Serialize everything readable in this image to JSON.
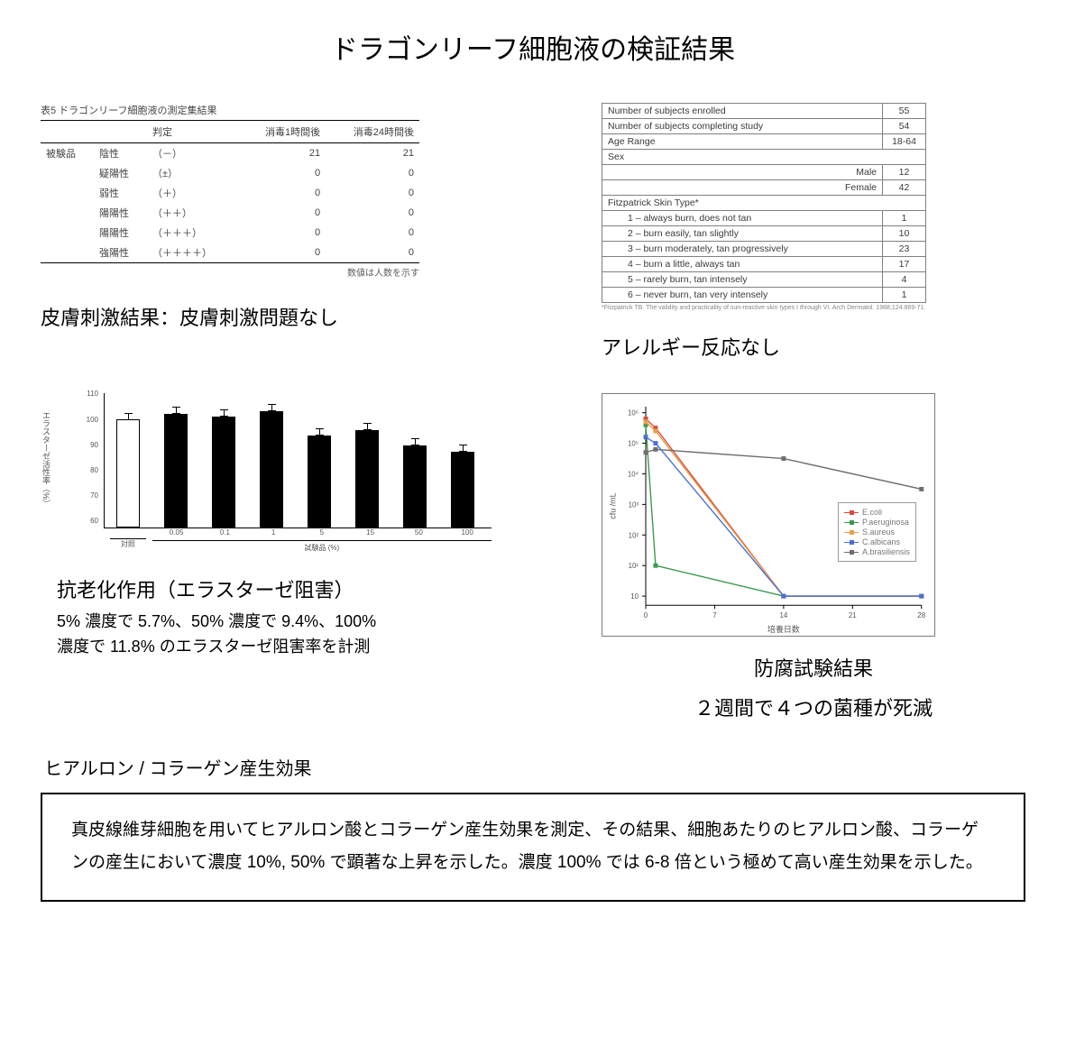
{
  "title": "ドラゴンリーフ細胞液の検証結果",
  "irritation": {
    "caption": "表5 ドラゴンリーフ細胞液の測定集結果",
    "headers": [
      "",
      "",
      "判定",
      "消毒1時間後",
      "消毒24時間後"
    ],
    "rows": [
      [
        "被験品",
        "陰性",
        "（－）",
        "21",
        "21"
      ],
      [
        "",
        "疑陽性",
        "（±）",
        "0",
        "0"
      ],
      [
        "",
        "弱性",
        "（＋）",
        "0",
        "0"
      ],
      [
        "",
        "陽陽性",
        "（＋＋）",
        "0",
        "0"
      ],
      [
        "",
        "陽陽性",
        "（＋＋＋）",
        "0",
        "0"
      ],
      [
        "",
        "強陽性",
        "（＋＋＋＋）",
        "0",
        "0"
      ]
    ],
    "footer": "数値は人数を示す",
    "result_caption": "皮膚刺激結果：皮膚刺激問題なし"
  },
  "subjects": {
    "rows": [
      {
        "label": "Number of subjects enrolled",
        "sub": 0,
        "val": "55"
      },
      {
        "label": "Number of subjects completing study",
        "sub": 0,
        "val": "54"
      },
      {
        "label": "Age Range",
        "sub": 0,
        "val": "18-64"
      },
      {
        "label": "Sex",
        "sub": 0,
        "val": ""
      },
      {
        "label": "Male",
        "sub": 2,
        "val": "12"
      },
      {
        "label": "Female",
        "sub": 2,
        "val": "42"
      },
      {
        "label": "Fitzpatrick Skin Type*",
        "sub": 0,
        "val": ""
      },
      {
        "label": "1 – always burn, does not tan",
        "sub": 1,
        "val": "1"
      },
      {
        "label": "2 – burn easily, tan slightly",
        "sub": 1,
        "val": "10"
      },
      {
        "label": "3 – burn moderately, tan progressively",
        "sub": 1,
        "val": "23"
      },
      {
        "label": "4 – burn a little, always tan",
        "sub": 1,
        "val": "17"
      },
      {
        "label": "5 – rarely burn, tan intensely",
        "sub": 1,
        "val": "4"
      },
      {
        "label": "6 – never burn, tan very intensely",
        "sub": 1,
        "val": "1"
      }
    ],
    "footnote": "*Fitzpatrick TB. The validity and practicality of sun‑reactive skin types I through VI. Arch Dermatol. 1988;124:869‑71.",
    "result_caption": "アレルギー反応なし"
  },
  "barchart": {
    "title": "抗老化作用（エラスターゼ阻害）",
    "subtitle1": "5% 濃度で 5.7%、50% 濃度で 9.4%、100%",
    "subtitle2": "濃度で 11.8% のエラスターゼ阻害率を計測",
    "ylabel": "エラスターゼ活性率（%）",
    "ylim": [
      60,
      110
    ],
    "yticks": [
      "110",
      "100",
      "90",
      "80",
      "70",
      "60"
    ],
    "categories": [
      "対照",
      "0.05",
      "0.1",
      "1",
      "5",
      "15",
      "50",
      "100"
    ],
    "values": [
      100,
      102,
      101,
      103,
      94.3,
      96,
      90.6,
      88.2
    ],
    "errors": [
      4,
      4,
      4,
      5,
      4,
      5,
      5,
      5
    ],
    "control_idx": 0,
    "bar_color": "#000000",
    "control_fill": "#ffffff",
    "group_label_left": "対照",
    "group_label_right": "試験品 (%)"
  },
  "linechart": {
    "title": "防腐試験結果",
    "subtitle": "２週間で４つの菌種が死滅",
    "xlabel": "培養日数",
    "ylabel": "cfu /mL",
    "x": [
      0,
      1,
      14,
      28
    ],
    "series": [
      {
        "name": "E.coli",
        "color": "#d94a3a",
        "y": [
          5.8,
          5.5,
          0.0,
          0.0
        ]
      },
      {
        "name": "P.aeruginosa",
        "color": "#3a9b4d",
        "y": [
          5.6,
          1.0,
          0.0,
          0.0
        ]
      },
      {
        "name": "S.aureus",
        "color": "#e5a24a",
        "y": [
          5.7,
          5.4,
          0.0,
          0.0
        ]
      },
      {
        "name": "C.albicans",
        "color": "#4a6fd9",
        "y": [
          5.2,
          5.0,
          0.0,
          0.0
        ]
      },
      {
        "name": "A.brasiliensis",
        "color": "#6e6e6e",
        "y": [
          4.7,
          4.8,
          4.5,
          3.5
        ]
      }
    ],
    "xlim": [
      0,
      28
    ],
    "ylim_log": [
      -0.3,
      6.2
    ],
    "yticks_exp": [
      0,
      1,
      2,
      3,
      4,
      5,
      6
    ]
  },
  "bottom": {
    "heading": "ヒアルロン / コラーゲン産生効果",
    "body": "真皮線維芽細胞を用いてヒアルロン酸とコラーゲン産生効果を測定、その結果、細胞あたりのヒアルロン酸、コラーゲンの産生において濃度 10%, 50% で顕著な上昇を示した。濃度 100% では 6-8 倍という極めて高い産生効果を示した。"
  }
}
